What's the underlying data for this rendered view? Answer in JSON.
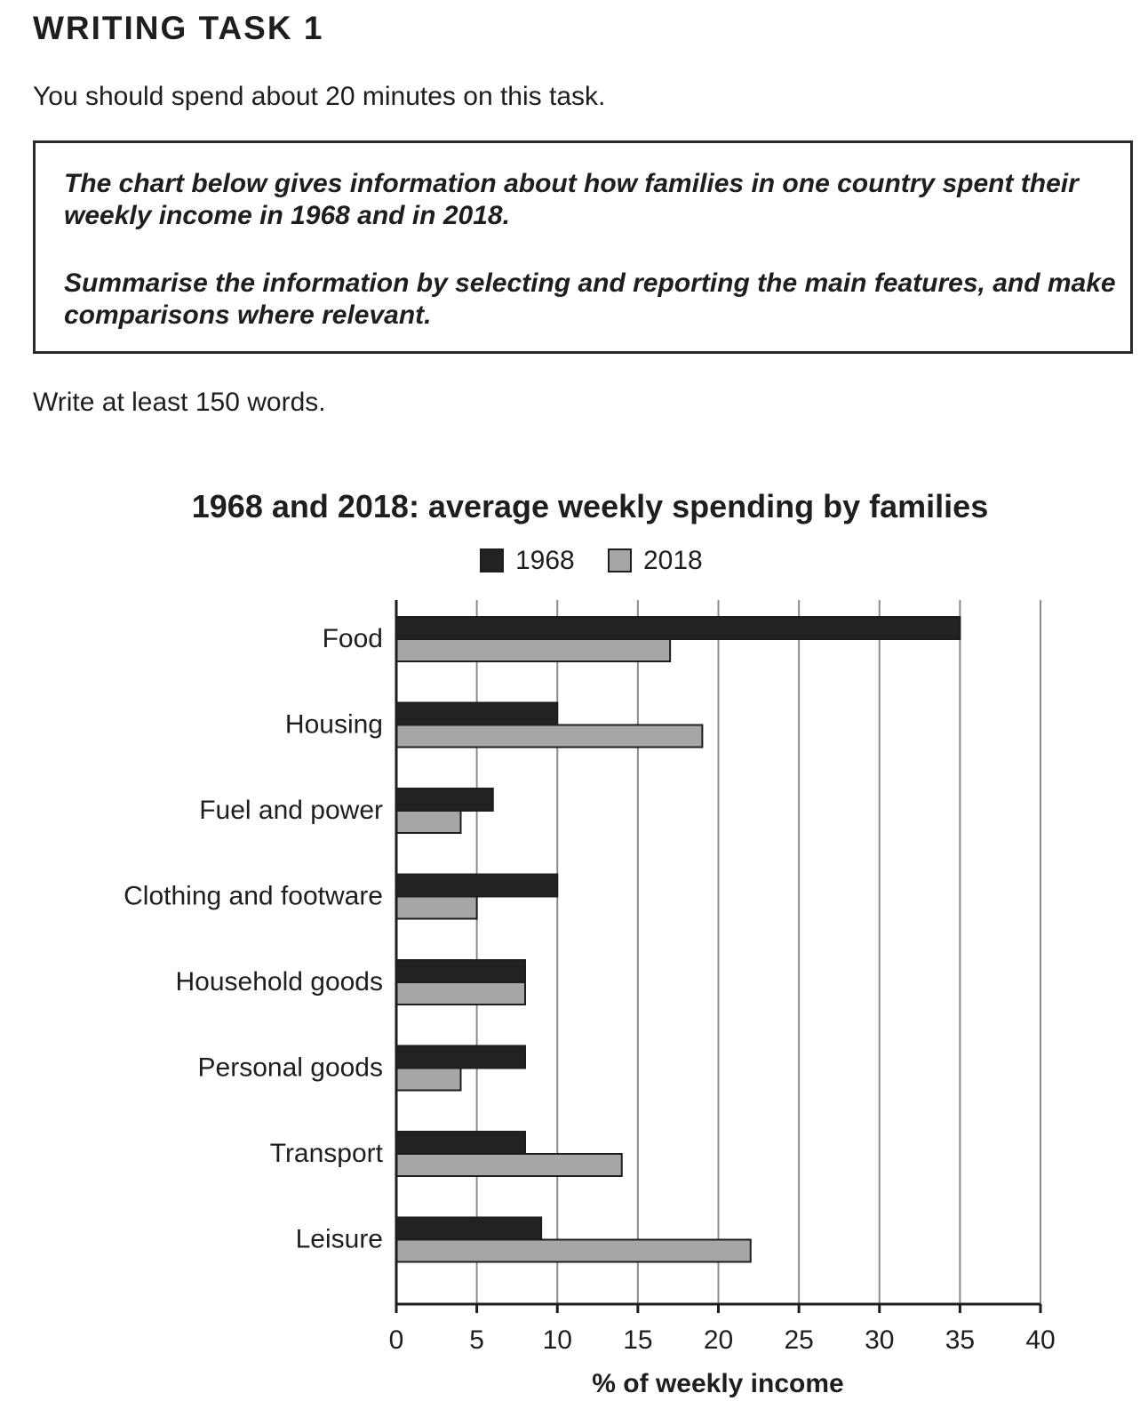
{
  "heading": "WRITING TASK 1",
  "instruction": "You should spend about 20 minutes on this task.",
  "prompt": {
    "paragraph1": "The chart below gives information about how families in one country spent their weekly income in 1968 and in 2018.",
    "paragraph2": "Summarise the information by selecting and reporting the main features, and make comparisons where relevant."
  },
  "word_count": "Write at least 150 words.",
  "chart_data": {
    "type": "bar",
    "orientation": "horizontal",
    "title": "1968 and 2018: average weekly spending by families",
    "xlabel": "% of weekly income",
    "ylabel": "",
    "categories": [
      "Food",
      "Housing",
      "Fuel and power",
      "Clothing and footware",
      "Household goods",
      "Personal goods",
      "Transport",
      "Leisure"
    ],
    "series": [
      {
        "name": "1968",
        "color": "#222222",
        "values": [
          35,
          10,
          6,
          10,
          8,
          8,
          8,
          9
        ]
      },
      {
        "name": "2018",
        "color": "#a6a6a8",
        "values": [
          17,
          19,
          4,
          5,
          8,
          4,
          14,
          22
        ]
      }
    ],
    "xlim": [
      0,
      40
    ],
    "xticks": [
      0,
      5,
      10,
      15,
      20,
      25,
      30,
      35,
      40
    ],
    "grid": "vertical",
    "legend": "top-center"
  }
}
